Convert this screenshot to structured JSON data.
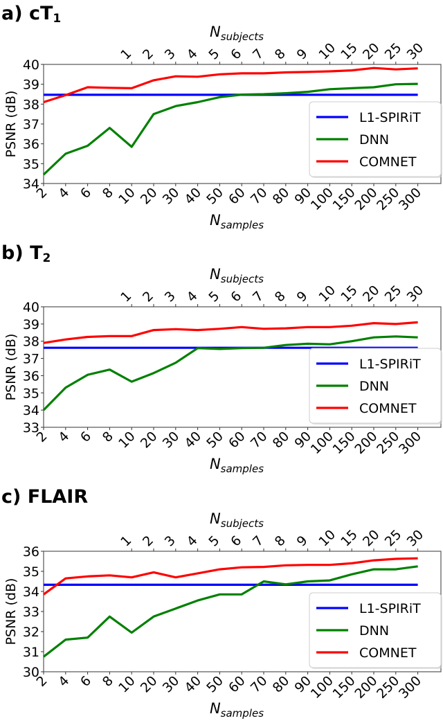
{
  "figure": {
    "panels": [
      {
        "id": "a",
        "title_prefix": "a) cT",
        "title_sub": "1"
      },
      {
        "id": "b",
        "title_prefix": "b) T",
        "title_sub": "2"
      },
      {
        "id": "c",
        "title_prefix": "c) FLAIR",
        "title_sub": ""
      }
    ],
    "ylabel": "PSNR (dB)",
    "xlabel_bottom_main": "N",
    "xlabel_bottom_sub": "samples",
    "xlabel_top_main": "N",
    "xlabel_top_sub": "subjects",
    "legend": [
      "L1-SPIRiT",
      "DNN",
      "COMNET"
    ],
    "colors": {
      "L1-SPIRiT": "#0000ff",
      "DNN": "#008000",
      "COMNET": "#ff0000"
    }
  },
  "chart_data": [
    {
      "type": "line",
      "title": "a) cT1",
      "xlabel": "N_samples",
      "ylabel": "PSNR (dB)",
      "secondary_xlabel": "N_subjects",
      "categories": [
        "2",
        "4",
        "6",
        "8",
        "10",
        "20",
        "30",
        "40",
        "50",
        "60",
        "70",
        "80",
        "90",
        "100",
        "150",
        "200",
        "250",
        "300"
      ],
      "secondary_categories": [
        "1",
        "2",
        "3",
        "4",
        "5",
        "6",
        "7",
        "8",
        "9",
        "10",
        "15",
        "20",
        "25",
        "30"
      ],
      "secondary_start_index": 4,
      "yticks": [
        34,
        35,
        36,
        37,
        38,
        39,
        40
      ],
      "ylim": [
        34,
        40
      ],
      "grid": false,
      "legend_position": "center right",
      "series": [
        {
          "name": "L1-SPIRiT",
          "color": "#0000ff",
          "values": [
            38.47,
            38.47,
            38.47,
            38.47,
            38.47,
            38.47,
            38.47,
            38.47,
            38.47,
            38.47,
            38.47,
            38.47,
            38.47,
            38.47,
            38.47,
            38.47,
            38.47,
            38.47
          ]
        },
        {
          "name": "DNN",
          "color": "#008000",
          "values": [
            34.45,
            35.5,
            35.9,
            36.8,
            35.85,
            37.5,
            37.9,
            38.1,
            38.35,
            38.48,
            38.5,
            38.55,
            38.62,
            38.75,
            38.8,
            38.85,
            39.0,
            39.02
          ]
        },
        {
          "name": "COMNET",
          "color": "#ff0000",
          "values": [
            38.1,
            38.45,
            38.85,
            38.82,
            38.8,
            39.2,
            39.4,
            39.38,
            39.5,
            39.55,
            39.55,
            39.6,
            39.62,
            39.65,
            39.7,
            39.82,
            39.75,
            39.8
          ]
        }
      ]
    },
    {
      "type": "line",
      "title": "b) T2",
      "xlabel": "N_samples",
      "ylabel": "PSNR (dB)",
      "secondary_xlabel": "N_subjects",
      "categories": [
        "2",
        "4",
        "6",
        "8",
        "10",
        "20",
        "30",
        "40",
        "50",
        "60",
        "70",
        "80",
        "90",
        "100",
        "150",
        "200",
        "250",
        "300"
      ],
      "secondary_categories": [
        "1",
        "2",
        "3",
        "4",
        "5",
        "6",
        "7",
        "8",
        "9",
        "10",
        "15",
        "20",
        "25",
        "30"
      ],
      "secondary_start_index": 4,
      "yticks": [
        33,
        34,
        35,
        36,
        37,
        38,
        39,
        40
      ],
      "ylim": [
        33,
        40
      ],
      "grid": false,
      "legend_position": "lower right",
      "series": [
        {
          "name": "L1-SPIRiT",
          "color": "#0000ff",
          "values": [
            37.62,
            37.62,
            37.62,
            37.62,
            37.62,
            37.62,
            37.62,
            37.62,
            37.62,
            37.62,
            37.62,
            37.62,
            37.62,
            37.62,
            37.62,
            37.62,
            37.62,
            37.62
          ]
        },
        {
          "name": "DNN",
          "color": "#008000",
          "values": [
            34.0,
            35.3,
            36.05,
            36.35,
            35.65,
            36.15,
            36.75,
            37.6,
            37.55,
            37.6,
            37.62,
            37.78,
            37.85,
            37.82,
            38.0,
            38.22,
            38.28,
            38.22
          ]
        },
        {
          "name": "COMNET",
          "color": "#ff0000",
          "values": [
            37.9,
            38.1,
            38.25,
            38.3,
            38.3,
            38.65,
            38.7,
            38.65,
            38.72,
            38.82,
            38.72,
            38.75,
            38.82,
            38.82,
            38.9,
            39.05,
            39.0,
            39.1
          ]
        }
      ]
    },
    {
      "type": "line",
      "title": "c) FLAIR",
      "xlabel": "N_samples",
      "ylabel": "PSNR (dB)",
      "secondary_xlabel": "N_subjects",
      "categories": [
        "2",
        "4",
        "6",
        "8",
        "10",
        "20",
        "30",
        "40",
        "50",
        "60",
        "70",
        "80",
        "90",
        "100",
        "150",
        "200",
        "250",
        "300"
      ],
      "secondary_categories": [
        "1",
        "2",
        "3",
        "4",
        "5",
        "6",
        "7",
        "8",
        "9",
        "10",
        "15",
        "20",
        "25",
        "30"
      ],
      "secondary_start_index": 4,
      "yticks": [
        30,
        31,
        32,
        33,
        34,
        35,
        36
      ],
      "ylim": [
        30,
        36
      ],
      "grid": false,
      "legend_position": "lower right",
      "series": [
        {
          "name": "L1-SPIRiT",
          "color": "#0000ff",
          "values": [
            34.33,
            34.33,
            34.33,
            34.33,
            34.33,
            34.33,
            34.33,
            34.33,
            34.33,
            34.33,
            34.33,
            34.33,
            34.33,
            34.33,
            34.33,
            34.33,
            34.33,
            34.33
          ]
        },
        {
          "name": "DNN",
          "color": "#008000",
          "values": [
            30.75,
            31.6,
            31.7,
            32.75,
            31.95,
            32.75,
            33.15,
            33.55,
            33.85,
            33.85,
            34.5,
            34.35,
            34.5,
            34.55,
            34.85,
            35.1,
            35.1,
            35.25
          ]
        },
        {
          "name": "COMNET",
          "color": "#ff0000",
          "values": [
            33.85,
            34.65,
            34.75,
            34.8,
            34.7,
            34.95,
            34.7,
            34.9,
            35.1,
            35.2,
            35.22,
            35.3,
            35.32,
            35.32,
            35.4,
            35.55,
            35.62,
            35.65
          ]
        }
      ]
    }
  ]
}
